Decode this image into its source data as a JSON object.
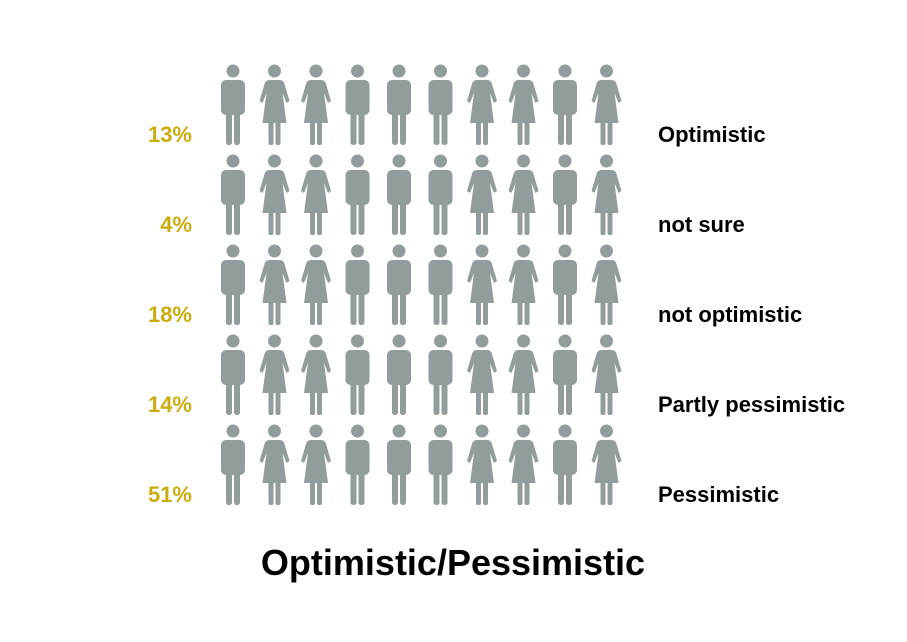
{
  "chart_data": {
    "type": "pictograph",
    "title": "Optimistic/Pessimistic",
    "icons_per_row": 10,
    "icon_gender_pattern": [
      "male",
      "female",
      "female",
      "male",
      "male",
      "male",
      "female",
      "female",
      "male",
      "female"
    ],
    "categories": [
      "Optimistic",
      "not sure",
      "not optimistic",
      "Partly pessimistic",
      "Pessimistic"
    ],
    "values": [
      13,
      4,
      18,
      14,
      51
    ],
    "value_labels": [
      "13%",
      "4%",
      "18%",
      "14%",
      "51%"
    ]
  },
  "colors": {
    "highlight": "#c9ad0e",
    "base": "#939c9c",
    "label_percent": "#c9ad0e",
    "label_text": "#000000"
  }
}
